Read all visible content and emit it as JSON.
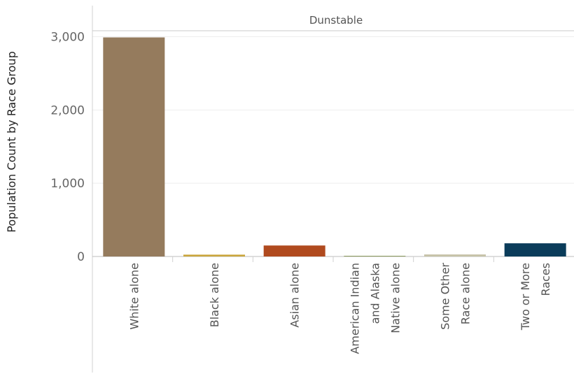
{
  "chart_data": {
    "type": "bar",
    "facet_label": "Dunstable",
    "ylabel": "Population Count by Race Group",
    "xlabel": "",
    "ylim": [
      0,
      3100
    ],
    "yticks": [
      0,
      1000,
      2000,
      3000
    ],
    "ytick_labels": [
      "0",
      "1,000",
      "2,000",
      "3,000"
    ],
    "grid": true,
    "categories": [
      [
        "White alone"
      ],
      [
        "Black alone"
      ],
      [
        "Asian alone"
      ],
      [
        "American Indian",
        "and Alaska",
        "Native alone"
      ],
      [
        "Some Other",
        "Race alone"
      ],
      [
        "Two or More",
        "Races"
      ]
    ],
    "values": [
      2990,
      25,
      150,
      5,
      28,
      180
    ],
    "colors": [
      "#957b5d",
      "#c9a53b",
      "#b04a1e",
      "#8b9a5c",
      "#c6c3a8",
      "#0b3c5a"
    ]
  }
}
